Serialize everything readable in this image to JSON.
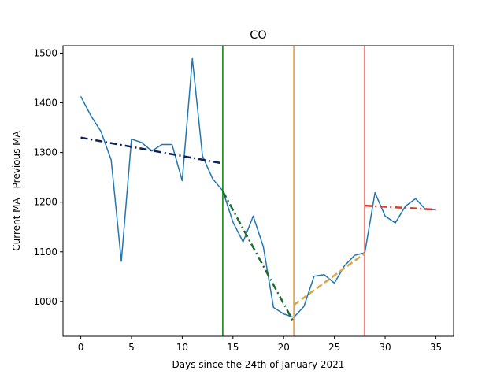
{
  "chart_data": {
    "type": "line",
    "title": "CO",
    "xlabel": "Days since the 24th of January 2021",
    "ylabel": "Current MA - Previous MA",
    "xlim": [
      -1.75,
      36.75
    ],
    "ylim": [
      930,
      1515
    ],
    "xticks": [
      0,
      5,
      10,
      15,
      20,
      25,
      30,
      35
    ],
    "yticks": [
      1000,
      1100,
      1200,
      1300,
      1400,
      1500
    ],
    "grid": false,
    "legend": "none",
    "series": [
      {
        "color": "#1f77b4",
        "style": "solid",
        "x": [
          0,
          1,
          2,
          3,
          4,
          5,
          6,
          7,
          8,
          9,
          10,
          11,
          12,
          13,
          14,
          15,
          16,
          17,
          18,
          19,
          20,
          21,
          22,
          23,
          24,
          25,
          26,
          27,
          28,
          29,
          30,
          31,
          32,
          33,
          34,
          35
        ],
        "y": [
          1413,
          1374,
          1342,
          1285,
          1081,
          1327,
          1320,
          1303,
          1316,
          1316,
          1243,
          1489,
          1293,
          1247,
          1223,
          1160,
          1120,
          1172,
          1110,
          988,
          975,
          968,
          990,
          1051,
          1054,
          1037,
          1072,
          1093,
          1098,
          1219,
          1172,
          1158,
          1192,
          1207,
          1185,
          1185
        ]
      }
    ],
    "trend_lines": [
      {
        "color": "#0b1f5c",
        "style": "dashdot",
        "x": [
          0,
          14
        ],
        "y": [
          1330,
          1278
        ]
      },
      {
        "color": "#1b6b2f",
        "style": "dashdot",
        "x": [
          14,
          21
        ],
        "y": [
          1222,
          958
        ]
      },
      {
        "color": "#d9a443",
        "style": "dashed",
        "x": [
          21,
          28
        ],
        "y": [
          993,
          1097
        ]
      },
      {
        "color": "#d73a2b",
        "style": "dashdot",
        "x": [
          28,
          35
        ],
        "y": [
          1193,
          1185
        ]
      }
    ],
    "vertical_lines": [
      {
        "x": 14,
        "color": "#008000"
      },
      {
        "x": 21,
        "color": "#e8943a"
      },
      {
        "x": 28,
        "color": "#e00000"
      }
    ]
  }
}
